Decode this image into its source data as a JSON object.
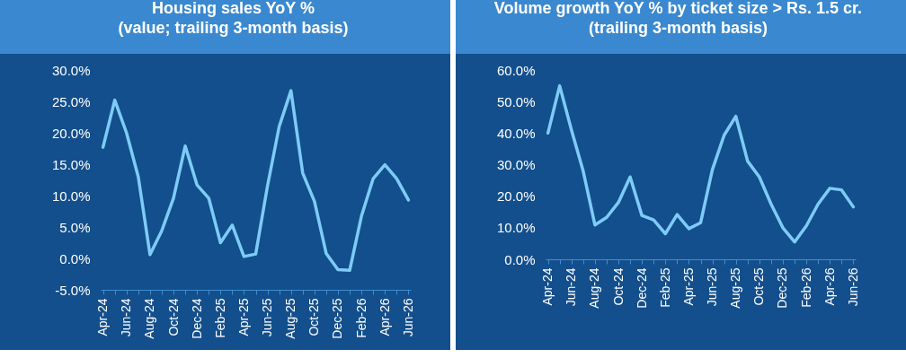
{
  "chart_data": [
    {
      "type": "line",
      "title": "Housing sales YoY %\n(value; trailing 3-month basis)",
      "categories": [
        "Apr-24",
        null,
        "Jun-24",
        null,
        "Aug-24",
        null,
        "Oct-24",
        null,
        "Dec-24",
        null,
        "Feb-25",
        null,
        "Apr-25",
        null,
        "Jun-25",
        null,
        "Aug-25",
        null,
        "Oct-25",
        null,
        "Dec-25",
        null,
        "Feb-26",
        null,
        "Apr-26",
        null,
        "Jun-26"
      ],
      "color": "#7ecbf7",
      "values": [
        17.7,
        25.2,
        20.0,
        13.0,
        0.6,
        4.4,
        9.6,
        17.9,
        11.7,
        9.6,
        2.5,
        5.3,
        0.3,
        0.7,
        11.5,
        21.0,
        26.7,
        13.6,
        9.1,
        0.8,
        -1.8,
        -1.9,
        6.7,
        12.7,
        14.9,
        12.7,
        9.3
      ],
      "ylim": [
        -5,
        30
      ],
      "yticks": [
        {
          "value": -5,
          "label": "-5.0%"
        },
        {
          "value": 0,
          "label": "0.0%"
        },
        {
          "value": 5,
          "label": "5.0%"
        },
        {
          "value": 10,
          "label": "10.0%"
        },
        {
          "value": 15,
          "label": "15.0%"
        },
        {
          "value": 20,
          "label": "20.0%"
        },
        {
          "value": 25,
          "label": "25.0%"
        },
        {
          "value": 30,
          "label": "30.0%"
        }
      ]
    },
    {
      "type": "line",
      "title": "Volume growth YoY % by ticket size > Rs. 1.5 cr.\n(trailing 3-month basis)",
      "categories": [
        "Apr-24",
        null,
        "Jun-24",
        null,
        "Aug-24",
        null,
        "Oct-24",
        null,
        "Dec-24",
        null,
        "Feb-25",
        null,
        "Apr-25",
        null,
        "Jun-25",
        null,
        "Aug-25",
        null,
        "Oct-25",
        null,
        "Dec-25",
        null,
        "Feb-26",
        null,
        "Apr-26",
        null,
        "Jun-26"
      ],
      "color": "#7ecbf7",
      "values": [
        40.0,
        55.0,
        41.0,
        28.0,
        10.9,
        13.3,
        18.0,
        26.1,
        13.9,
        12.5,
        8.1,
        14.2,
        9.7,
        11.6,
        28.4,
        39.3,
        45.3,
        31.1,
        26.1,
        17.5,
        10.0,
        5.5,
        10.6,
        17.5,
        22.5,
        22.0,
        16.6
      ],
      "ylim": [
        0,
        60
      ],
      "yticks": [
        {
          "value": 0,
          "label": "0.0%"
        },
        {
          "value": 10,
          "label": "10.0%"
        },
        {
          "value": 20,
          "label": "20.0%"
        },
        {
          "value": 30,
          "label": "30.0%"
        },
        {
          "value": 40,
          "label": "40.0%"
        },
        {
          "value": 50,
          "label": "50.0%"
        },
        {
          "value": 60,
          "label": "60.0%"
        }
      ]
    }
  ]
}
